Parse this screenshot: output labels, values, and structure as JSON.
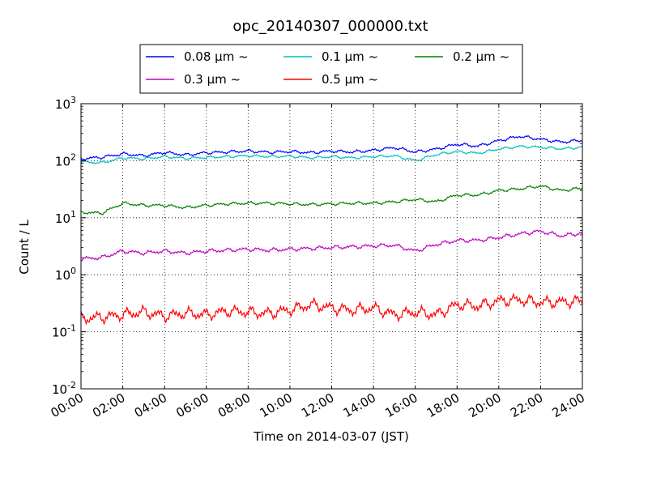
{
  "chart_data": {
    "type": "line",
    "title": "opc_20140307_000000.txt",
    "xlabel": "Time on 2014-03-07 (JST)",
    "ylabel": "Count / L",
    "x_tick_labels": [
      "00:00",
      "02:00",
      "04:00",
      "06:00",
      "08:00",
      "10:00",
      "12:00",
      "14:00",
      "16:00",
      "18:00",
      "20:00",
      "22:00",
      "24:00"
    ],
    "y_tick_labels": [
      {
        "base": "10",
        "exp": "-2"
      },
      {
        "base": "10",
        "exp": "-1"
      },
      {
        "base": "10",
        "exp": "0"
      },
      {
        "base": "10",
        "exp": "1"
      },
      {
        "base": "10",
        "exp": "2"
      },
      {
        "base": "10",
        "exp": "3"
      }
    ],
    "ylim": [
      0.01,
      1000
    ],
    "xlim_hours": [
      0,
      24
    ],
    "y_scale": "log",
    "grid": true,
    "legend_position": "top-center",
    "series": [
      {
        "name": "0.08 μm ~",
        "color": "#0000ff",
        "x_hours": [
          0,
          1,
          2,
          3,
          4,
          5,
          6,
          7,
          8,
          9,
          10,
          11,
          12,
          13,
          14,
          15,
          16,
          17,
          18,
          19,
          20,
          21,
          22,
          23,
          24
        ],
        "values": [
          108,
          115,
          132,
          122,
          140,
          126,
          138,
          142,
          148,
          140,
          145,
          138,
          148,
          142,
          152,
          170,
          142,
          160,
          195,
          180,
          225,
          268,
          238,
          212,
          228
        ]
      },
      {
        "name": "0.1 μm ~",
        "color": "#00bfbf",
        "x_hours": [
          0,
          1,
          2,
          3,
          4,
          5,
          6,
          7,
          8,
          9,
          10,
          11,
          12,
          13,
          14,
          15,
          16,
          17,
          18,
          19,
          20,
          21,
          22,
          23,
          24
        ],
        "values": [
          95,
          92,
          112,
          108,
          118,
          110,
          114,
          118,
          122,
          118,
          120,
          112,
          118,
          112,
          118,
          122,
          100,
          128,
          145,
          135,
          160,
          178,
          172,
          162,
          172
        ]
      },
      {
        "name": "0.2 μm ~",
        "color": "#008000",
        "x_hours": [
          0,
          1,
          2,
          3,
          4,
          5,
          6,
          7,
          8,
          9,
          10,
          11,
          12,
          13,
          14,
          15,
          16,
          17,
          18,
          19,
          20,
          21,
          22,
          23,
          24
        ],
        "values": [
          12.5,
          12,
          18,
          16.5,
          16.5,
          15,
          16.5,
          17.5,
          18,
          18,
          17.5,
          17,
          17.5,
          18,
          18,
          19,
          21,
          19,
          25,
          25,
          30,
          32,
          36,
          30,
          33
        ]
      },
      {
        "name": "0.3 μm ~",
        "color": "#bf00bf",
        "x_hours": [
          0,
          1,
          2,
          3,
          4,
          5,
          6,
          7,
          8,
          9,
          10,
          11,
          12,
          13,
          14,
          15,
          16,
          17,
          18,
          19,
          20,
          21,
          22,
          23,
          24
        ],
        "values": [
          1.9,
          2.0,
          2.6,
          2.4,
          2.6,
          2.4,
          2.6,
          2.7,
          2.8,
          2.7,
          2.8,
          2.9,
          3.0,
          3.1,
          3.2,
          3.3,
          2.6,
          3.4,
          4.0,
          4.0,
          4.5,
          5.2,
          5.8,
          4.8,
          5.4
        ]
      },
      {
        "name": "0.5 μm ~",
        "color": "#ff0000",
        "x_hours": [
          0,
          1,
          2,
          3,
          4,
          5,
          6,
          7,
          8,
          9,
          10,
          11,
          12,
          13,
          14,
          15,
          16,
          17,
          18,
          19,
          20,
          21,
          22,
          23,
          24
        ],
        "values": [
          0.17,
          0.18,
          0.2,
          0.22,
          0.19,
          0.21,
          0.2,
          0.23,
          0.22,
          0.21,
          0.24,
          0.3,
          0.26,
          0.24,
          0.26,
          0.2,
          0.22,
          0.2,
          0.3,
          0.28,
          0.35,
          0.36,
          0.33,
          0.33,
          0.35
        ]
      }
    ]
  }
}
